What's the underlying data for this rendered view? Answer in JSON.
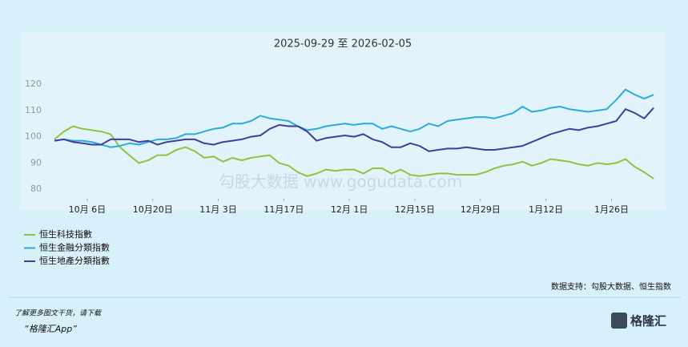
{
  "chart_data": {
    "type": "line",
    "title": "2025-09-29 至 2026-02-05",
    "xlim": [
      0,
      64.25
    ],
    "xticks": [
      {
        "value": 3.5,
        "label": "10月 6日"
      },
      {
        "value": 10.5,
        "label": "10月20日"
      },
      {
        "value": 17.5,
        "label": "11月 3日"
      },
      {
        "value": 24.5,
        "label": "11月17日"
      },
      {
        "value": 31.5,
        "label": "12月 1日"
      },
      {
        "value": 38.5,
        "label": "12月15日"
      },
      {
        "value": 45.5,
        "label": "12月29日"
      },
      {
        "value": 52.5,
        "label": "1月12日"
      },
      {
        "value": 59.5,
        "label": "1月26日"
      }
    ],
    "ylim": [
      77,
      124
    ],
    "yticks": [
      80,
      90,
      100,
      110,
      120
    ],
    "grid": false,
    "series": [
      {
        "name": "恒生科技指數",
        "color": "#8cc63f",
        "values": [
          99,
          102,
          104,
          103,
          102.5,
          102,
          101,
          96,
          93,
          90,
          91,
          93,
          93,
          95,
          96,
          94.5,
          92,
          92.5,
          90.5,
          92,
          91,
          92,
          92.5,
          93,
          90,
          89,
          86.5,
          85,
          86,
          87.5,
          87,
          87.5,
          87.5,
          86,
          88,
          88,
          86,
          87.5,
          85.5,
          85,
          85.5,
          86,
          86,
          85.5,
          85.5,
          85.5,
          86.5,
          88,
          89,
          89.5,
          90.5,
          89,
          90,
          91.5,
          91,
          90.5,
          89.5,
          89,
          90,
          89.5,
          90,
          91.5,
          88.5,
          86.5,
          84
        ]
      },
      {
        "name": "恒生金融分類指數",
        "color": "#29abe2",
        "values": [
          98.5,
          99,
          98.5,
          98.5,
          98,
          97,
          96,
          96.5,
          97.5,
          97,
          98,
          99,
          99,
          99.5,
          101,
          101,
          102,
          103,
          103.5,
          105,
          105,
          106,
          108,
          107,
          106.5,
          106,
          104,
          102.5,
          103,
          104,
          104.5,
          105,
          104.5,
          105,
          105,
          103,
          104,
          103,
          102,
          103,
          105,
          104,
          106,
          106.5,
          107,
          107.5,
          107.5,
          107,
          108,
          109,
          111.5,
          109.5,
          110,
          111,
          111.5,
          110.5,
          110,
          109.5,
          110,
          110.5,
          114,
          118,
          116,
          114.5,
          116
        ]
      },
      {
        "name": "恒生地產分類指數",
        "color": "#3f3f9f",
        "values": [
          98.5,
          99,
          98,
          97.5,
          97,
          97,
          99,
          99,
          99,
          98,
          98.5,
          97,
          98,
          98.5,
          99,
          99,
          97.5,
          97,
          98,
          98.5,
          99,
          100,
          100.5,
          103,
          104.5,
          104,
          104,
          102,
          98.5,
          99.5,
          100,
          100.5,
          100,
          101,
          99,
          98,
          96,
          96,
          97.5,
          96.5,
          94.5,
          95,
          95.5,
          95.5,
          96,
          95.5,
          95,
          95,
          95.5,
          96,
          96.5,
          98,
          99.5,
          101,
          102,
          103,
          102.5,
          103.5,
          104,
          105,
          106,
          110.5,
          109,
          107,
          111
        ]
      }
    ],
    "source": "数据支持：勾股大数据、恒生指数",
    "watermark": "勾股大数据 www.gogudata.com"
  },
  "footer": {
    "line1": "了解更多图文干货，请下载",
    "line2": "“格隆汇App”",
    "logo": "格隆汇"
  }
}
